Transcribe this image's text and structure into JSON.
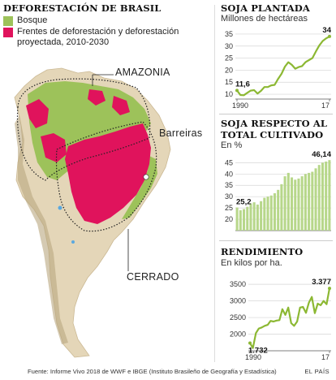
{
  "map": {
    "title": "DEFORESTACIÓN DE BRASIL",
    "legend": [
      {
        "label": "Bosque",
        "color": "#9dc25a"
      },
      {
        "label": "Frentes de deforestación y deforestación proyectada, 2010-2030",
        "color": "#e0135c"
      }
    ],
    "labels": {
      "amazonia": "AMAZONIA",
      "barreiras": "Barreiras",
      "cerrado": "CERRADO"
    },
    "land_color": "#e4d6b8"
  },
  "chart_data": [
    {
      "type": "line",
      "title": "SOJA PLANTADA",
      "subtitle": "Millones de hectáreas",
      "x": [
        1990,
        1991,
        1992,
        1993,
        1994,
        1995,
        1996,
        1997,
        1998,
        1999,
        2000,
        2001,
        2002,
        2003,
        2004,
        2005,
        2006,
        2007,
        2008,
        2009,
        2010,
        2011,
        2012,
        2013,
        2014,
        2015,
        2016,
        2017
      ],
      "values": [
        11.6,
        9.7,
        9.6,
        10.6,
        11.5,
        11.7,
        10.3,
        11.4,
        13.0,
        13.0,
        13.7,
        13.9,
        16.4,
        18.5,
        21.5,
        23.3,
        22.2,
        20.6,
        21.3,
        21.7,
        23.3,
        24.2,
        25.0,
        27.7,
        30.2,
        32.1,
        33.2,
        34
      ],
      "annotations": {
        "first": "11,6",
        "last": "34"
      },
      "yticks": [
        10,
        15,
        20,
        25,
        30,
        35
      ],
      "ylim": [
        8,
        37
      ],
      "xlabel_start": "1990",
      "xlabel_end": "17",
      "color": "#8cb833"
    },
    {
      "type": "bar",
      "title": "SOJA RESPECTO AL TOTAL CULTIVADO",
      "subtitle": "En %",
      "x": [
        1990,
        1991,
        1992,
        1993,
        1994,
        1995,
        1996,
        1997,
        1998,
        1999,
        2000,
        2001,
        2002,
        2003,
        2004,
        2005,
        2006,
        2007,
        2008,
        2009,
        2010,
        2011,
        2012,
        2013,
        2014,
        2015,
        2016,
        2017
      ],
      "values": [
        25.2,
        24.0,
        24.5,
        25.5,
        27.0,
        27.5,
        26.5,
        28.0,
        29.5,
        30.0,
        30.5,
        31.5,
        33.0,
        35.5,
        39.0,
        40.5,
        38.5,
        37.5,
        38.0,
        39.0,
        40.0,
        40.5,
        41.0,
        42.5,
        44.0,
        45.0,
        45.5,
        46.14
      ],
      "annotations": {
        "first": "25,2",
        "last": "46,14"
      },
      "yticks": [
        20,
        25,
        30,
        35,
        40,
        45
      ],
      "ylim": [
        15,
        48
      ],
      "color": "#b7d78a"
    },
    {
      "type": "line",
      "title": "RENDIMIENTO",
      "subtitle": "En kilos por ha.",
      "x": [
        1990,
        1991,
        1992,
        1993,
        1994,
        1995,
        1996,
        1997,
        1998,
        1999,
        2000,
        2001,
        2002,
        2003,
        2004,
        2005,
        2006,
        2007,
        2008,
        2009,
        2010,
        2011,
        2012,
        2013,
        2014,
        2015,
        2016,
        2017
      ],
      "values": [
        1732,
        1580,
        2030,
        2170,
        2200,
        2250,
        2280,
        2400,
        2380,
        2410,
        2420,
        2750,
        2580,
        2800,
        2330,
        2250,
        2380,
        2800,
        2820,
        2640,
        2950,
        3120,
        2630,
        2920,
        2870,
        3000,
        2900,
        3377
      ],
      "annotations": {
        "first": "1.732",
        "last": "3.377"
      },
      "yticks": [
        2000,
        2500,
        3000,
        3500
      ],
      "ylim": [
        1500,
        3650
      ],
      "xlabel_start": "1990",
      "xlabel_end": "17",
      "color": "#8cb833"
    }
  ],
  "footer": {
    "source": "Fuente: Informe Vivo 2018 de WWF e IBGE (Instituto Brasileño de Geografía y Estadística)",
    "brand": "EL PAÍS"
  }
}
